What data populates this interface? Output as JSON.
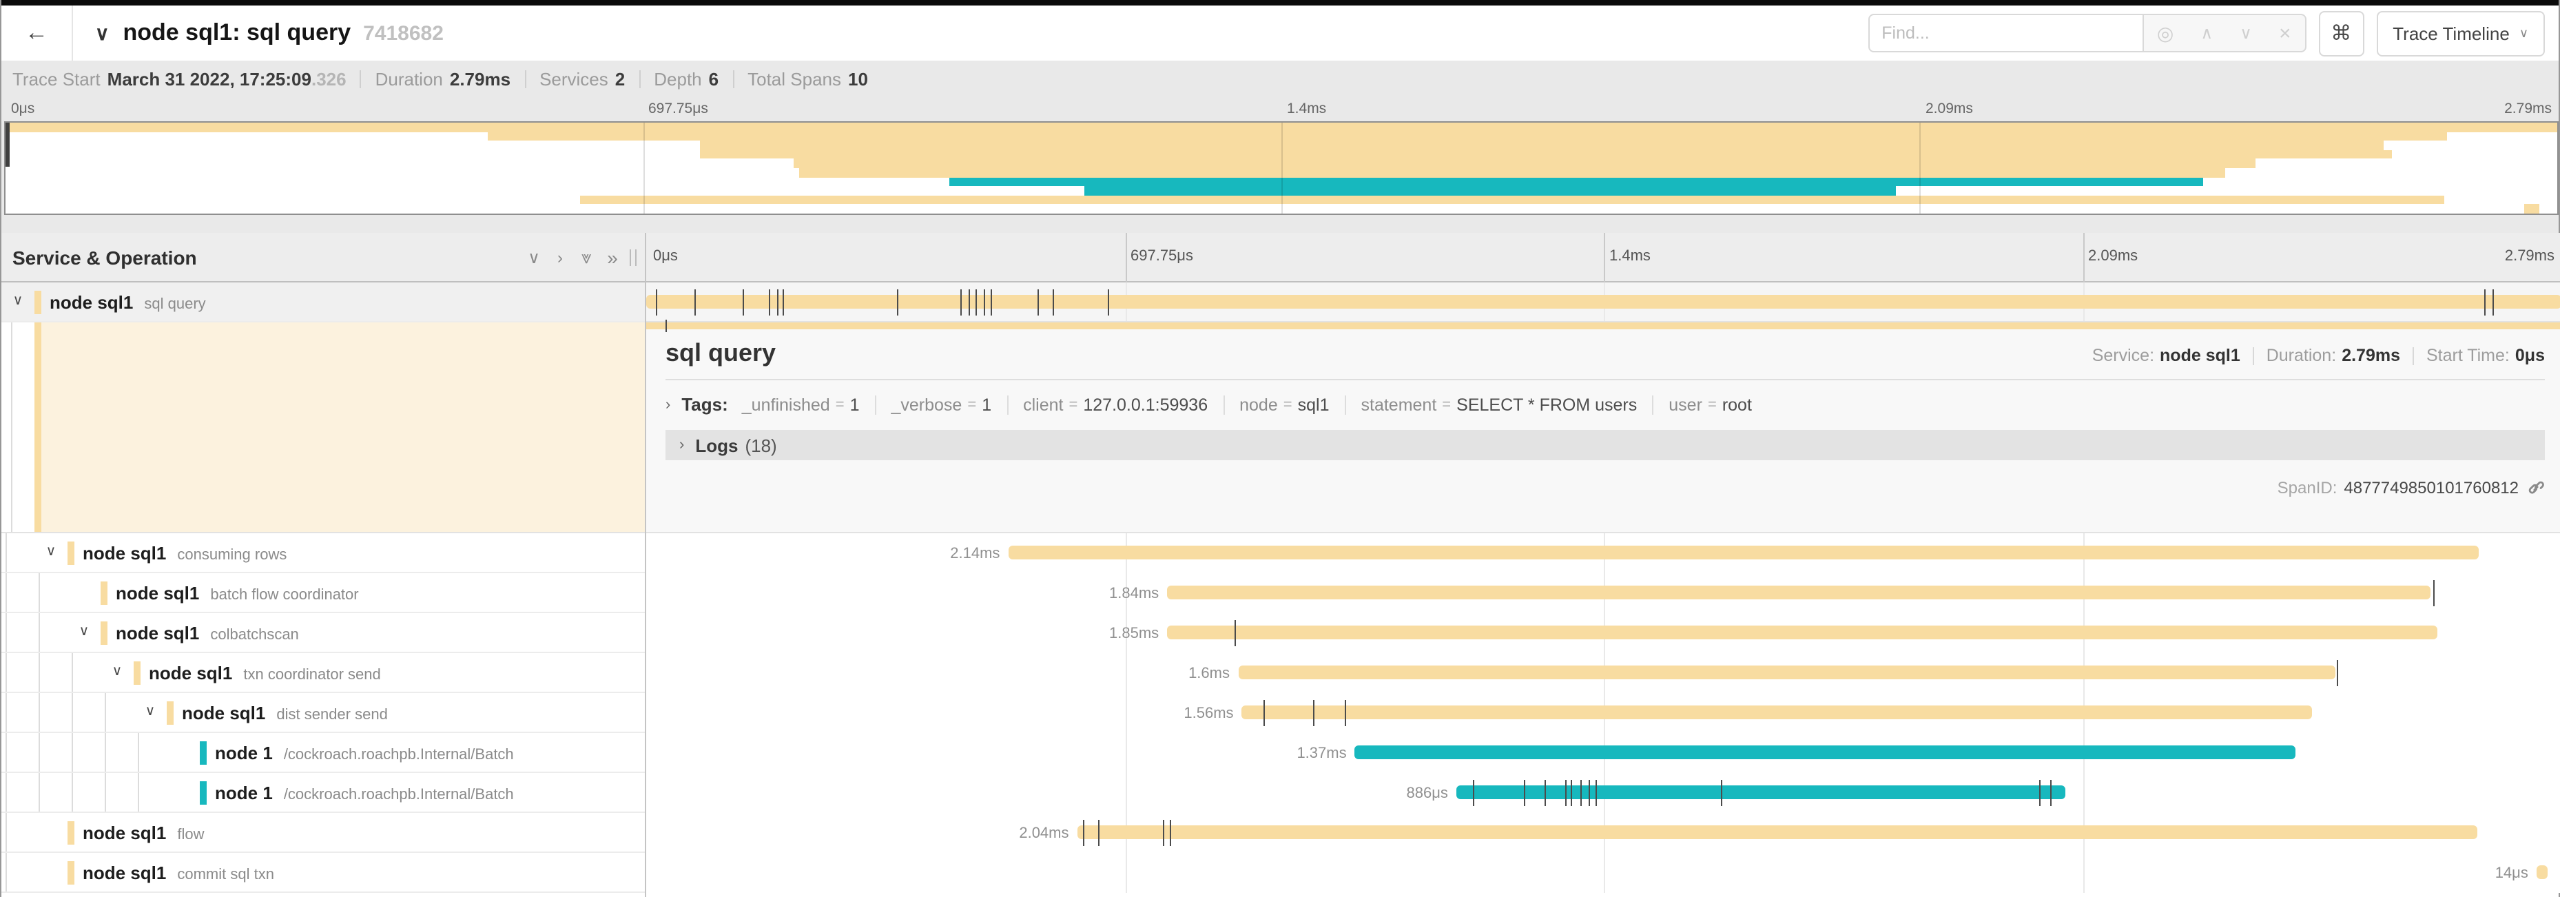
{
  "header": {
    "title": "node sql1: sql query",
    "trace_id": "7418682",
    "find_placeholder": "Find...",
    "view_button_label": "Trace Timeline"
  },
  "icons": {
    "back": "←",
    "title_collapse": "∨",
    "find_target": "◎",
    "find_prev": "∧",
    "find_next": "∨",
    "find_clear": "×",
    "keyboard_shortcut": "⌘",
    "dropdown_chevron": "∨",
    "collapse_one": "∨",
    "expand_one": "›",
    "collapse_all": "⩔",
    "expand_all": "»",
    "row_chevron": "∨",
    "section_chevron": "›"
  },
  "summary": {
    "items": [
      {
        "label": "Trace Start",
        "value": "March 31 2022, 17:25:09",
        "suffix": ".326"
      },
      {
        "label": "Duration",
        "value": "2.79ms"
      },
      {
        "label": "Services",
        "value": "2"
      },
      {
        "label": "Depth",
        "value": "6"
      },
      {
        "label": "Total Spans",
        "value": "10"
      }
    ]
  },
  "axis": {
    "ticks": [
      {
        "label": "0μs",
        "pct": 0
      },
      {
        "label": "697.75μs",
        "pct": 25
      },
      {
        "label": "1.4ms",
        "pct": 50
      },
      {
        "label": "2.09ms",
        "pct": 75
      },
      {
        "label": "2.79ms",
        "pct": 100
      }
    ]
  },
  "left_panel": {
    "header_title": "Service & Operation"
  },
  "colors": {
    "beige": "#F8DCA1",
    "teal": "#17B8BE"
  },
  "spans": [
    {
      "service": "node sql1",
      "operation": "sql query",
      "depth": 0,
      "expandable": true,
      "selected": true,
      "color": "beige",
      "start_pct": 0,
      "end_pct": 100,
      "duration_label": "",
      "ticks": [
        0.5,
        2.55,
        5.0,
        6.4,
        6.8,
        7.1,
        13.1,
        16.4,
        16.8,
        17.2,
        17.6,
        18.0,
        20.4,
        21.2,
        24.1,
        96.0,
        96.4
      ]
    },
    {
      "service": "node sql1",
      "operation": "consuming rows",
      "depth": 1,
      "expandable": true,
      "selected": false,
      "color": "beige",
      "start_pct": 18.9,
      "end_pct": 95.7,
      "duration_label": "2.14ms",
      "ticks": []
    },
    {
      "service": "node sql1",
      "operation": "batch flow coordinator",
      "depth": 2,
      "expandable": false,
      "selected": false,
      "color": "beige",
      "start_pct": 27.2,
      "end_pct": 93.2,
      "duration_label": "1.84ms",
      "ticks": [
        93.3
      ]
    },
    {
      "service": "node sql1",
      "operation": "colbatchscan",
      "depth": 2,
      "expandable": true,
      "selected": false,
      "color": "beige",
      "start_pct": 27.2,
      "end_pct": 93.5,
      "duration_label": "1.85ms",
      "ticks": [
        30.7
      ]
    },
    {
      "service": "node sql1",
      "operation": "txn coordinator send",
      "depth": 3,
      "expandable": true,
      "selected": false,
      "color": "beige",
      "start_pct": 30.9,
      "end_pct": 88.2,
      "duration_label": "1.6ms",
      "ticks": [
        88.3
      ]
    },
    {
      "service": "node sql1",
      "operation": "dist sender send",
      "depth": 4,
      "expandable": true,
      "selected": false,
      "color": "beige",
      "start_pct": 31.1,
      "end_pct": 87.0,
      "duration_label": "1.56ms",
      "ticks": [
        32.2,
        34.8,
        36.5
      ]
    },
    {
      "service": "node 1",
      "operation": "/cockroach.roachpb.Internal/Batch",
      "depth": 5,
      "expandable": false,
      "selected": false,
      "color": "teal",
      "start_pct": 37.0,
      "end_pct": 86.1,
      "duration_label": "1.37ms",
      "ticks": []
    },
    {
      "service": "node 1",
      "operation": "/cockroach.roachpb.Internal/Batch",
      "depth": 5,
      "expandable": false,
      "selected": false,
      "color": "teal",
      "start_pct": 42.3,
      "end_pct": 74.1,
      "duration_label": "886μs",
      "ticks": [
        43.2,
        45.8,
        46.9,
        48.0,
        48.3,
        48.8,
        49.2,
        49.6,
        56.1,
        72.7,
        73.3
      ]
    },
    {
      "service": "node sql1",
      "operation": "flow",
      "depth": 1,
      "expandable": false,
      "selected": false,
      "color": "beige",
      "start_pct": 22.5,
      "end_pct": 95.6,
      "duration_label": "2.04ms",
      "ticks": [
        22.8,
        23.6,
        27.0,
        27.35
      ]
    },
    {
      "service": "node sql1",
      "operation": "commit sql txn",
      "depth": 1,
      "expandable": false,
      "selected": false,
      "color": "beige",
      "start_pct": 98.7,
      "end_pct": 99.3,
      "duration_label": "14μs",
      "ticks": []
    }
  ],
  "detail": {
    "title": "sql query",
    "meta": [
      {
        "label": "Service:",
        "value": "node sql1"
      },
      {
        "label": "Duration:",
        "value": "2.79ms"
      },
      {
        "label": "Start Time:",
        "value": "0μs"
      }
    ],
    "tags_label": "Tags:",
    "tags": [
      {
        "key": "_unfinished",
        "value": "1"
      },
      {
        "key": "_verbose",
        "value": "1"
      },
      {
        "key": "client",
        "value": "127.0.0.1:59936"
      },
      {
        "key": "node",
        "value": "sql1"
      },
      {
        "key": "statement",
        "value": "SELECT * FROM users"
      },
      {
        "key": "user",
        "value": "root"
      }
    ],
    "logs_label": "Logs",
    "logs_count": "(18)",
    "span_id_label": "SpanID:",
    "span_id": "4877749850101760812",
    "bar_tick_pct": 1.0
  }
}
